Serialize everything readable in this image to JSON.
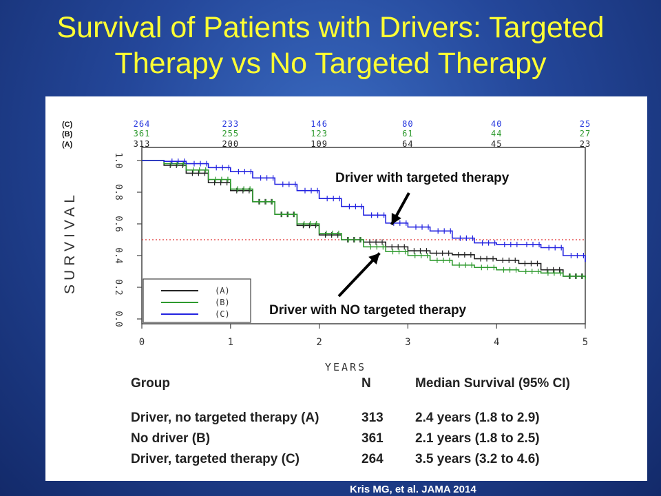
{
  "slide": {
    "title_line1": "Survival of Patients with Drivers: Targeted",
    "title_line2": "Therapy vs No Targeted Therapy",
    "citation": "Kris MG, et al. JAMA 2014",
    "title_color": "#ffff33"
  },
  "chart_data": {
    "type": "line",
    "xlabel": "YEARS",
    "ylabel": "SURVIVAL",
    "xlim": [
      0,
      5
    ],
    "ylim": [
      0,
      1
    ],
    "x_ticks": [
      0,
      1,
      2,
      3,
      4,
      5
    ],
    "y_ticks": [
      0,
      0.2,
      0.4,
      0.6,
      0.8,
      1.0
    ],
    "y_tick_labels": [
      "0.0",
      "0.2",
      "0.4",
      "0.6",
      "0.8",
      "1.0"
    ],
    "reference_line": {
      "y": 0.5,
      "color": "#e03030",
      "style": "dotted"
    },
    "grid": false,
    "legend_placement": "bottom-left",
    "legend": [
      {
        "label": "(A)",
        "color": "#222222"
      },
      {
        "label": "(B)",
        "color": "#2e9a2e"
      },
      {
        "label": "(C)",
        "color": "#2222e0"
      }
    ],
    "at_risk": {
      "times": [
        0,
        1,
        2,
        3,
        4,
        5
      ],
      "rows": [
        {
          "label": "(C)",
          "color": "#2233dd",
          "values": [
            264,
            233,
            146,
            80,
            40,
            25
          ]
        },
        {
          "label": "(B)",
          "color": "#2e9a2e",
          "values": [
            361,
            255,
            123,
            61,
            44,
            27
          ]
        },
        {
          "label": "(A)",
          "color": "#222222",
          "values": [
            313,
            200,
            109,
            64,
            45,
            23
          ]
        }
      ]
    },
    "series": [
      {
        "name": "(A)",
        "color": "#222222",
        "x": [
          0,
          0.25,
          0.5,
          0.75,
          1.0,
          1.25,
          1.5,
          1.75,
          2.0,
          2.25,
          2.5,
          2.75,
          3.0,
          3.25,
          3.5,
          3.75,
          4.0,
          4.25,
          4.5,
          4.75,
          5.0
        ],
        "y": [
          1.0,
          0.97,
          0.92,
          0.86,
          0.81,
          0.74,
          0.66,
          0.59,
          0.53,
          0.5,
          0.485,
          0.455,
          0.43,
          0.415,
          0.405,
          0.38,
          0.37,
          0.35,
          0.31,
          0.27,
          0.26
        ]
      },
      {
        "name": "(B)",
        "color": "#2e9a2e",
        "x": [
          0,
          0.25,
          0.5,
          0.75,
          1.0,
          1.25,
          1.5,
          1.75,
          2.0,
          2.25,
          2.5,
          2.75,
          3.0,
          3.25,
          3.5,
          3.75,
          4.0,
          4.25,
          4.5,
          4.75,
          5.0
        ],
        "y": [
          1.0,
          0.98,
          0.94,
          0.88,
          0.82,
          0.74,
          0.66,
          0.6,
          0.54,
          0.5,
          0.455,
          0.425,
          0.4,
          0.37,
          0.34,
          0.325,
          0.31,
          0.3,
          0.29,
          0.27,
          0.25
        ]
      },
      {
        "name": "(C)",
        "color": "#2222e0",
        "x": [
          0,
          0.25,
          0.5,
          0.75,
          1.0,
          1.25,
          1.5,
          1.75,
          2.0,
          2.25,
          2.5,
          2.75,
          3.0,
          3.25,
          3.5,
          3.75,
          4.0,
          4.25,
          4.5,
          4.75,
          5.0
        ],
        "y": [
          1.0,
          0.995,
          0.98,
          0.955,
          0.93,
          0.89,
          0.85,
          0.81,
          0.76,
          0.71,
          0.655,
          0.605,
          0.58,
          0.555,
          0.51,
          0.48,
          0.47,
          0.47,
          0.45,
          0.4,
          0.36
        ]
      }
    ],
    "annotations": [
      {
        "text": "Driver with targeted therapy",
        "points_to": {
          "x": 2.8,
          "y": 0.6
        }
      },
      {
        "text": "Driver with NO targeted therapy",
        "points_to": {
          "x": 2.65,
          "y": 0.45
        }
      }
    ]
  },
  "table": {
    "headers": {
      "group": "Group",
      "n": "N",
      "median": "Median Survival (95% CI)"
    },
    "rows": [
      {
        "group": "Driver, no targeted therapy (A)",
        "n": "313",
        "median": "2.4 years (1.8 to 2.9)"
      },
      {
        "group": "No driver (B)",
        "n": "361",
        "median": "2.1 years (1.8 to 2.5)"
      },
      {
        "group": "Driver,  targeted therapy (C)",
        "n": "264",
        "median": "3.5 years (3.2 to 4.6)"
      }
    ]
  }
}
